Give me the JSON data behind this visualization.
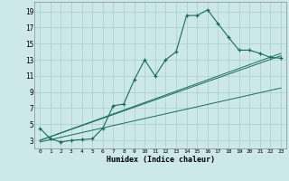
{
  "xlabel": "Humidex (Indice chaleur)",
  "ylabel": "",
  "background_color": "#cce8e8",
  "grid_color": "#aacece",
  "line_color": "#1a6b5e",
  "xlim": [
    -0.5,
    23.5
  ],
  "ylim": [
    2,
    20.2
  ],
  "xticks": [
    0,
    1,
    2,
    3,
    4,
    5,
    6,
    7,
    8,
    9,
    10,
    11,
    12,
    13,
    14,
    15,
    16,
    17,
    18,
    19,
    20,
    21,
    22,
    23
  ],
  "yticks": [
    3,
    5,
    7,
    9,
    11,
    13,
    15,
    17,
    19
  ],
  "series1_x": [
    0,
    1,
    2,
    3,
    4,
    5,
    6,
    7,
    8,
    9,
    10,
    11,
    12,
    13,
    14,
    15,
    16,
    17,
    18,
    19,
    20,
    21,
    22,
    23
  ],
  "series1_y": [
    4.5,
    3.2,
    2.8,
    3.0,
    3.1,
    3.2,
    4.5,
    7.3,
    7.5,
    10.5,
    13.0,
    11.0,
    13.0,
    14.0,
    18.5,
    18.5,
    19.2,
    17.5,
    15.8,
    14.2,
    14.2,
    13.8,
    13.3,
    13.2
  ],
  "series2_x": [
    0,
    23
  ],
  "series2_y": [
    3.0,
    13.5
  ],
  "series3_x": [
    0,
    23
  ],
  "series3_y": [
    3.0,
    13.8
  ],
  "series4_x": [
    0,
    23
  ],
  "series4_y": [
    2.8,
    9.5
  ]
}
